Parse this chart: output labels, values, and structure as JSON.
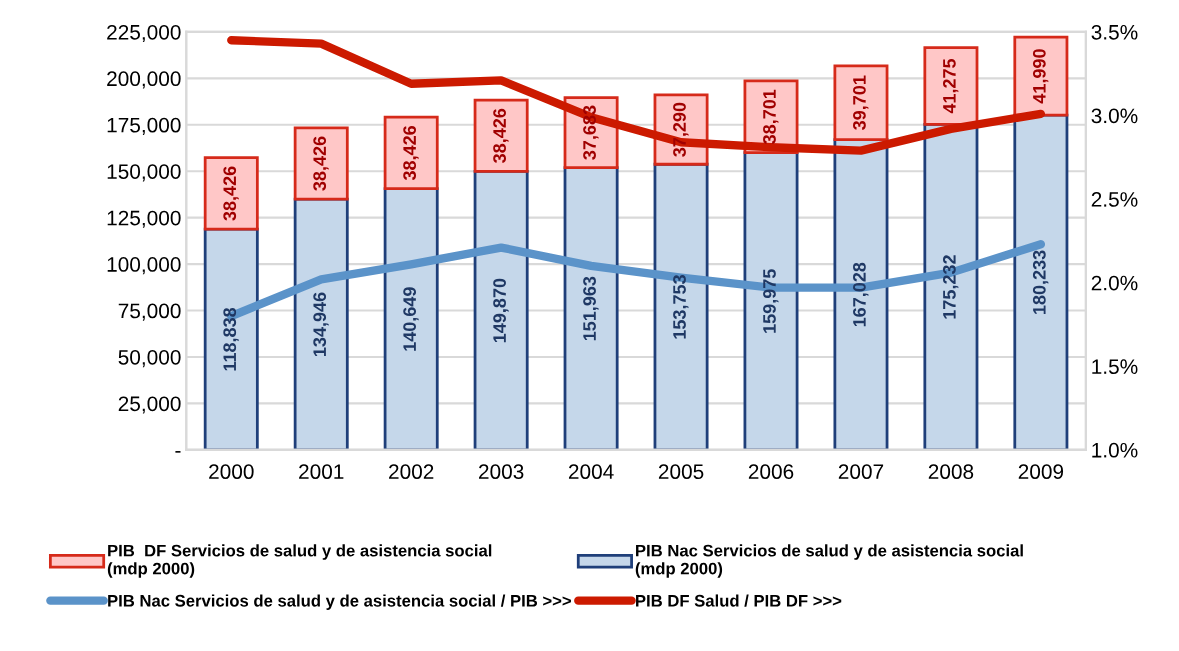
{
  "chart_data": {
    "type": "bar",
    "stacked": true,
    "categories": [
      "2000",
      "2001",
      "2002",
      "2003",
      "2004",
      "2005",
      "2006",
      "2007",
      "2008",
      "2009"
    ],
    "series": [
      {
        "name": "PIB Nac Servicios de salud y de asistencia social\n(mdp 2000)",
        "color": "#c5d7ea",
        "values": [
          118838,
          134946,
          140649,
          149870,
          151963,
          153753,
          159975,
          167028,
          175232,
          180233
        ],
        "value_labels": [
          "118,838",
          "134,946",
          "140,649",
          "149,870",
          "151,963",
          "153,753",
          "159,975",
          "167,028",
          "175,232",
          "180,233"
        ]
      },
      {
        "name": "PIB  DF Servicios de salud y de asistencia social\n(mdp 2000)",
        "color": "#ffc7c7",
        "values": [
          38426,
          38426,
          38426,
          38426,
          37683,
          37290,
          38701,
          39701,
          41275,
          41990
        ],
        "value_labels": [
          "38,426",
          "38,426",
          "38,426",
          "38,426",
          "37,683",
          "37,290",
          "38,701",
          "39,701",
          "41,275",
          "41,990"
        ]
      },
      {
        "name": "PIB Nac Servicios de salud y de asistencia social / PIB >>>",
        "type": "line",
        "axis": "y2",
        "color": "#5b93c9",
        "values": [
          1.8,
          2.02,
          2.11,
          2.21,
          2.1,
          2.03,
          1.97,
          1.97,
          2.06,
          2.23
        ]
      },
      {
        "name": "PIB DF Salud / PIB DF >>>",
        "type": "line",
        "axis": "y2",
        "color": "#cc1a00",
        "values": [
          3.45,
          3.43,
          3.19,
          3.21,
          2.99,
          2.84,
          2.81,
          2.79,
          2.92,
          3.01
        ]
      }
    ],
    "ylim": [
      0,
      225000
    ],
    "yticks": [
      {
        "value": 0,
        "label": "-"
      },
      {
        "value": 25000,
        "label": "25,000"
      },
      {
        "value": 50000,
        "label": "50,000"
      },
      {
        "value": 75000,
        "label": "75,000"
      },
      {
        "value": 100000,
        "label": "100,000"
      },
      {
        "value": 125000,
        "label": "125,000"
      },
      {
        "value": 150000,
        "label": "150,000"
      },
      {
        "value": 175000,
        "label": "175,000"
      },
      {
        "value": 200000,
        "label": "200,000"
      },
      {
        "value": 225000,
        "label": "225,000"
      }
    ],
    "y2lim": [
      1.0,
      3.5
    ],
    "y2ticks": [
      {
        "value": 1.0,
        "label": "1.0%"
      },
      {
        "value": 1.5,
        "label": "1.5%"
      },
      {
        "value": 2.0,
        "label": "2.0%"
      },
      {
        "value": 2.5,
        "label": "2.5%"
      },
      {
        "value": 3.0,
        "label": "3.0%"
      },
      {
        "value": 3.5,
        "label": "3.5%"
      }
    ],
    "grid": "y",
    "legend": "bottom"
  }
}
